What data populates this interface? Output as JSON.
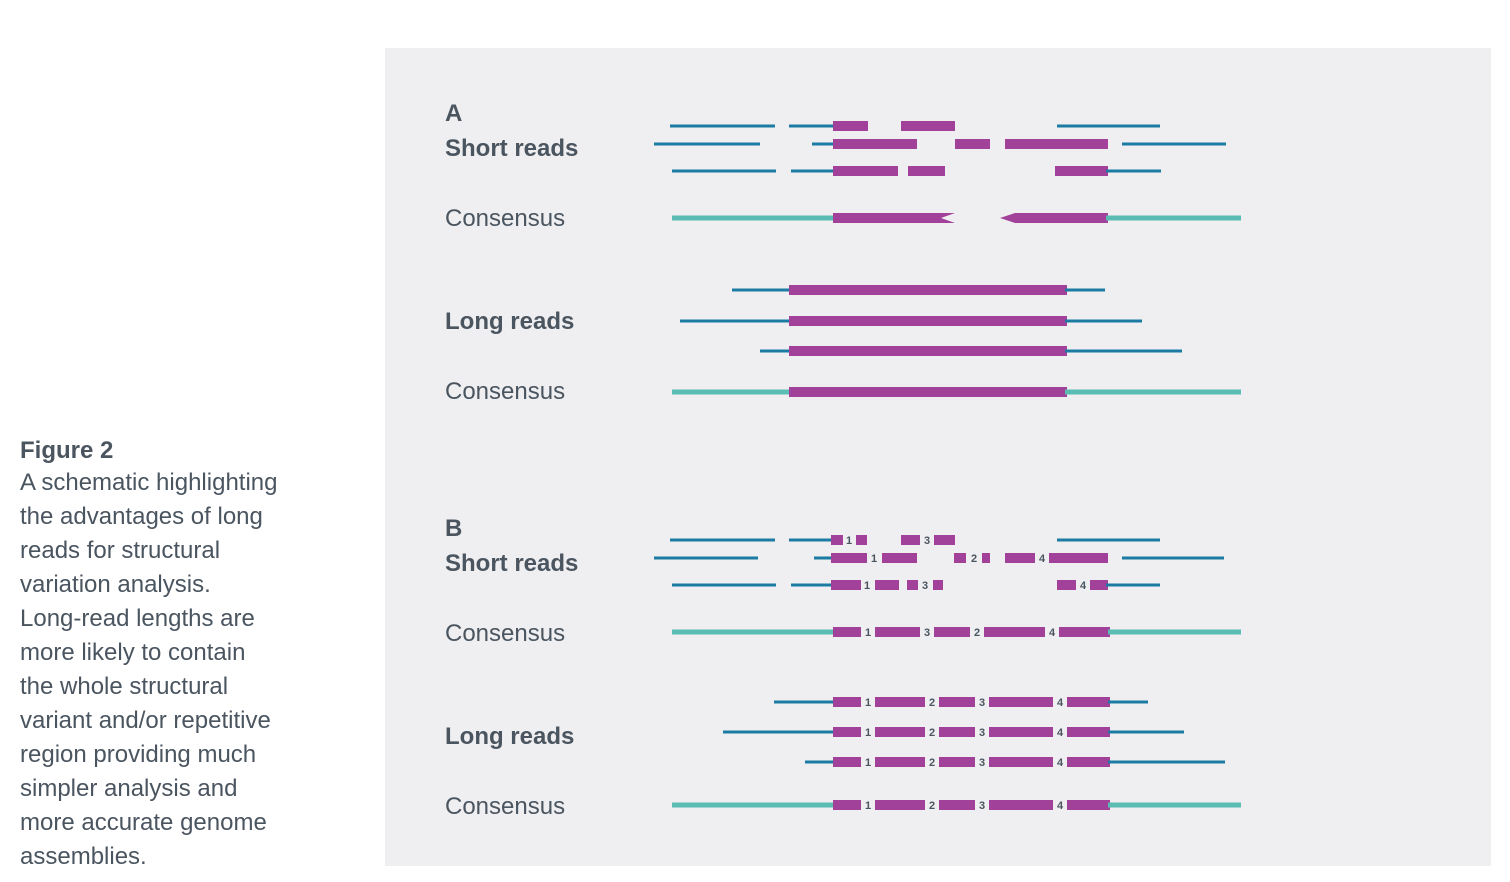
{
  "caption": {
    "title": "Figure 2",
    "lines": [
      "A schematic highlighting",
      "the advantages of long",
      "reads for structural",
      "variation analysis.",
      "Long-read lengths are",
      "more likely to contain",
      "the whole structural",
      "variant and/or repetitive",
      "region providing much",
      "simpler analysis and",
      "more accurate genome",
      "assemblies."
    ]
  },
  "panel_a": {
    "letter": "A",
    "short_label": "Short reads",
    "consensus1_label": "Consensus",
    "long_label": "Long reads",
    "consensus2_label": "Consensus"
  },
  "panel_b": {
    "letter": "B",
    "short_label": "Short reads",
    "consensus1_label": "Consensus",
    "long_label": "Long reads",
    "consensus2_label": "Consensus"
  },
  "segment_labels": [
    "1",
    "2",
    "3",
    "4"
  ],
  "colors": {
    "read": "#1b7ba3",
    "consensus": "#5bbcb3",
    "variant": "#a2419a",
    "panel_bg": "#efeff1",
    "text": "#4a5560"
  }
}
